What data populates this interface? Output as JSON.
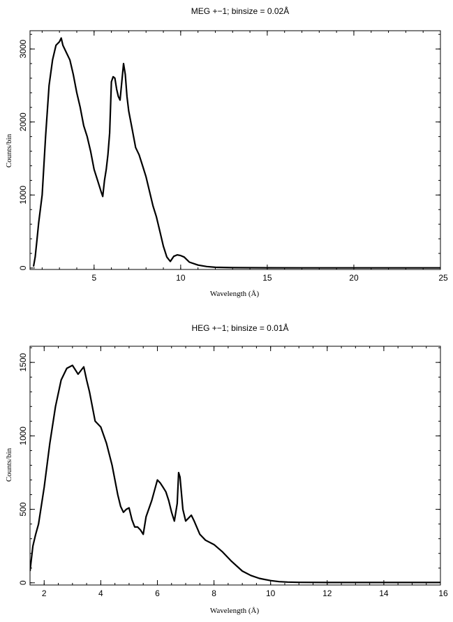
{
  "chart_data": [
    {
      "type": "line",
      "title": "MEG +−1; binsize = 0.02Å",
      "xlabel": "Wavelength (Å)",
      "ylabel": "Counts/bin",
      "xlim": [
        1.3,
        25
      ],
      "ylim": [
        -20,
        3250
      ],
      "xticks": [
        5,
        10,
        15,
        20,
        25
      ],
      "yticks": [
        0,
        1000,
        2000,
        3000
      ],
      "x_minor_step": 1,
      "y_minor_step": 200,
      "series": [
        {
          "x": [
            1.5,
            1.6,
            1.7,
            1.8,
            2.0,
            2.2,
            2.4,
            2.6,
            2.8,
            3.0,
            3.1,
            3.2,
            3.4,
            3.6,
            3.8,
            4.0,
            4.2,
            4.4,
            4.6,
            4.8,
            5.0,
            5.2,
            5.4,
            5.5,
            5.6,
            5.7,
            5.8,
            5.9,
            6.0,
            6.1,
            6.2,
            6.3,
            6.4,
            6.5,
            6.6,
            6.7,
            6.8,
            6.9,
            7.0,
            7.2,
            7.4,
            7.6,
            7.8,
            8.0,
            8.2,
            8.4,
            8.6,
            8.8,
            9.0,
            9.2,
            9.4,
            9.6,
            9.8,
            10.0,
            10.2,
            10.5,
            11.0,
            11.5,
            12.0,
            13.0,
            14.0,
            15.0,
            17.0,
            20.0,
            25.0
          ],
          "y": [
            20,
            150,
            380,
            620,
            1000,
            1800,
            2500,
            2850,
            3050,
            3100,
            3150,
            3050,
            2950,
            2850,
            2650,
            2400,
            2200,
            1950,
            1800,
            1600,
            1350,
            1200,
            1050,
            980,
            1200,
            1350,
            1550,
            1850,
            2550,
            2620,
            2600,
            2450,
            2350,
            2300,
            2550,
            2800,
            2650,
            2350,
            2150,
            1900,
            1650,
            1550,
            1400,
            1250,
            1050,
            850,
            700,
            500,
            300,
            150,
            90,
            160,
            180,
            170,
            150,
            80,
            40,
            20,
            10,
            5,
            4,
            3,
            2,
            2,
            2
          ]
        }
      ]
    },
    {
      "type": "line",
      "title": "HEG +−1; binsize = 0.01Å",
      "xlabel": "Wavelength (Å)",
      "ylabel": "Counts/bin",
      "xlim": [
        1.5,
        16
      ],
      "ylim": [
        -15,
        1610
      ],
      "xticks": [
        2,
        4,
        6,
        8,
        10,
        12,
        14,
        16
      ],
      "yticks": [
        0,
        500,
        1000,
        1500
      ],
      "x_minor_step": 0.5,
      "y_minor_step": 100,
      "series": [
        {
          "x": [
            1.5,
            1.6,
            1.7,
            1.8,
            2.0,
            2.2,
            2.4,
            2.6,
            2.8,
            3.0,
            3.2,
            3.4,
            3.5,
            3.6,
            3.8,
            4.0,
            4.2,
            4.4,
            4.6,
            4.7,
            4.8,
            4.9,
            5.0,
            5.1,
            5.2,
            5.3,
            5.4,
            5.5,
            5.6,
            5.8,
            6.0,
            6.1,
            6.2,
            6.3,
            6.4,
            6.5,
            6.6,
            6.7,
            6.75,
            6.8,
            6.9,
            7.0,
            7.1,
            7.2,
            7.3,
            7.5,
            7.7,
            8.0,
            8.3,
            8.6,
            9.0,
            9.3,
            9.6,
            10.0,
            10.3,
            10.6,
            11.0,
            12.0,
            14.0,
            16.0
          ],
          "y": [
            80,
            250,
            330,
            400,
            650,
            950,
            1200,
            1380,
            1460,
            1480,
            1420,
            1470,
            1380,
            1300,
            1100,
            1060,
            950,
            800,
            600,
            520,
            480,
            500,
            510,
            430,
            380,
            380,
            360,
            330,
            450,
            560,
            700,
            680,
            650,
            620,
            560,
            480,
            420,
            540,
            750,
            720,
            500,
            420,
            440,
            460,
            420,
            330,
            290,
            260,
            210,
            150,
            80,
            50,
            30,
            15,
            8,
            5,
            3,
            2,
            2,
            2
          ]
        }
      ]
    }
  ]
}
